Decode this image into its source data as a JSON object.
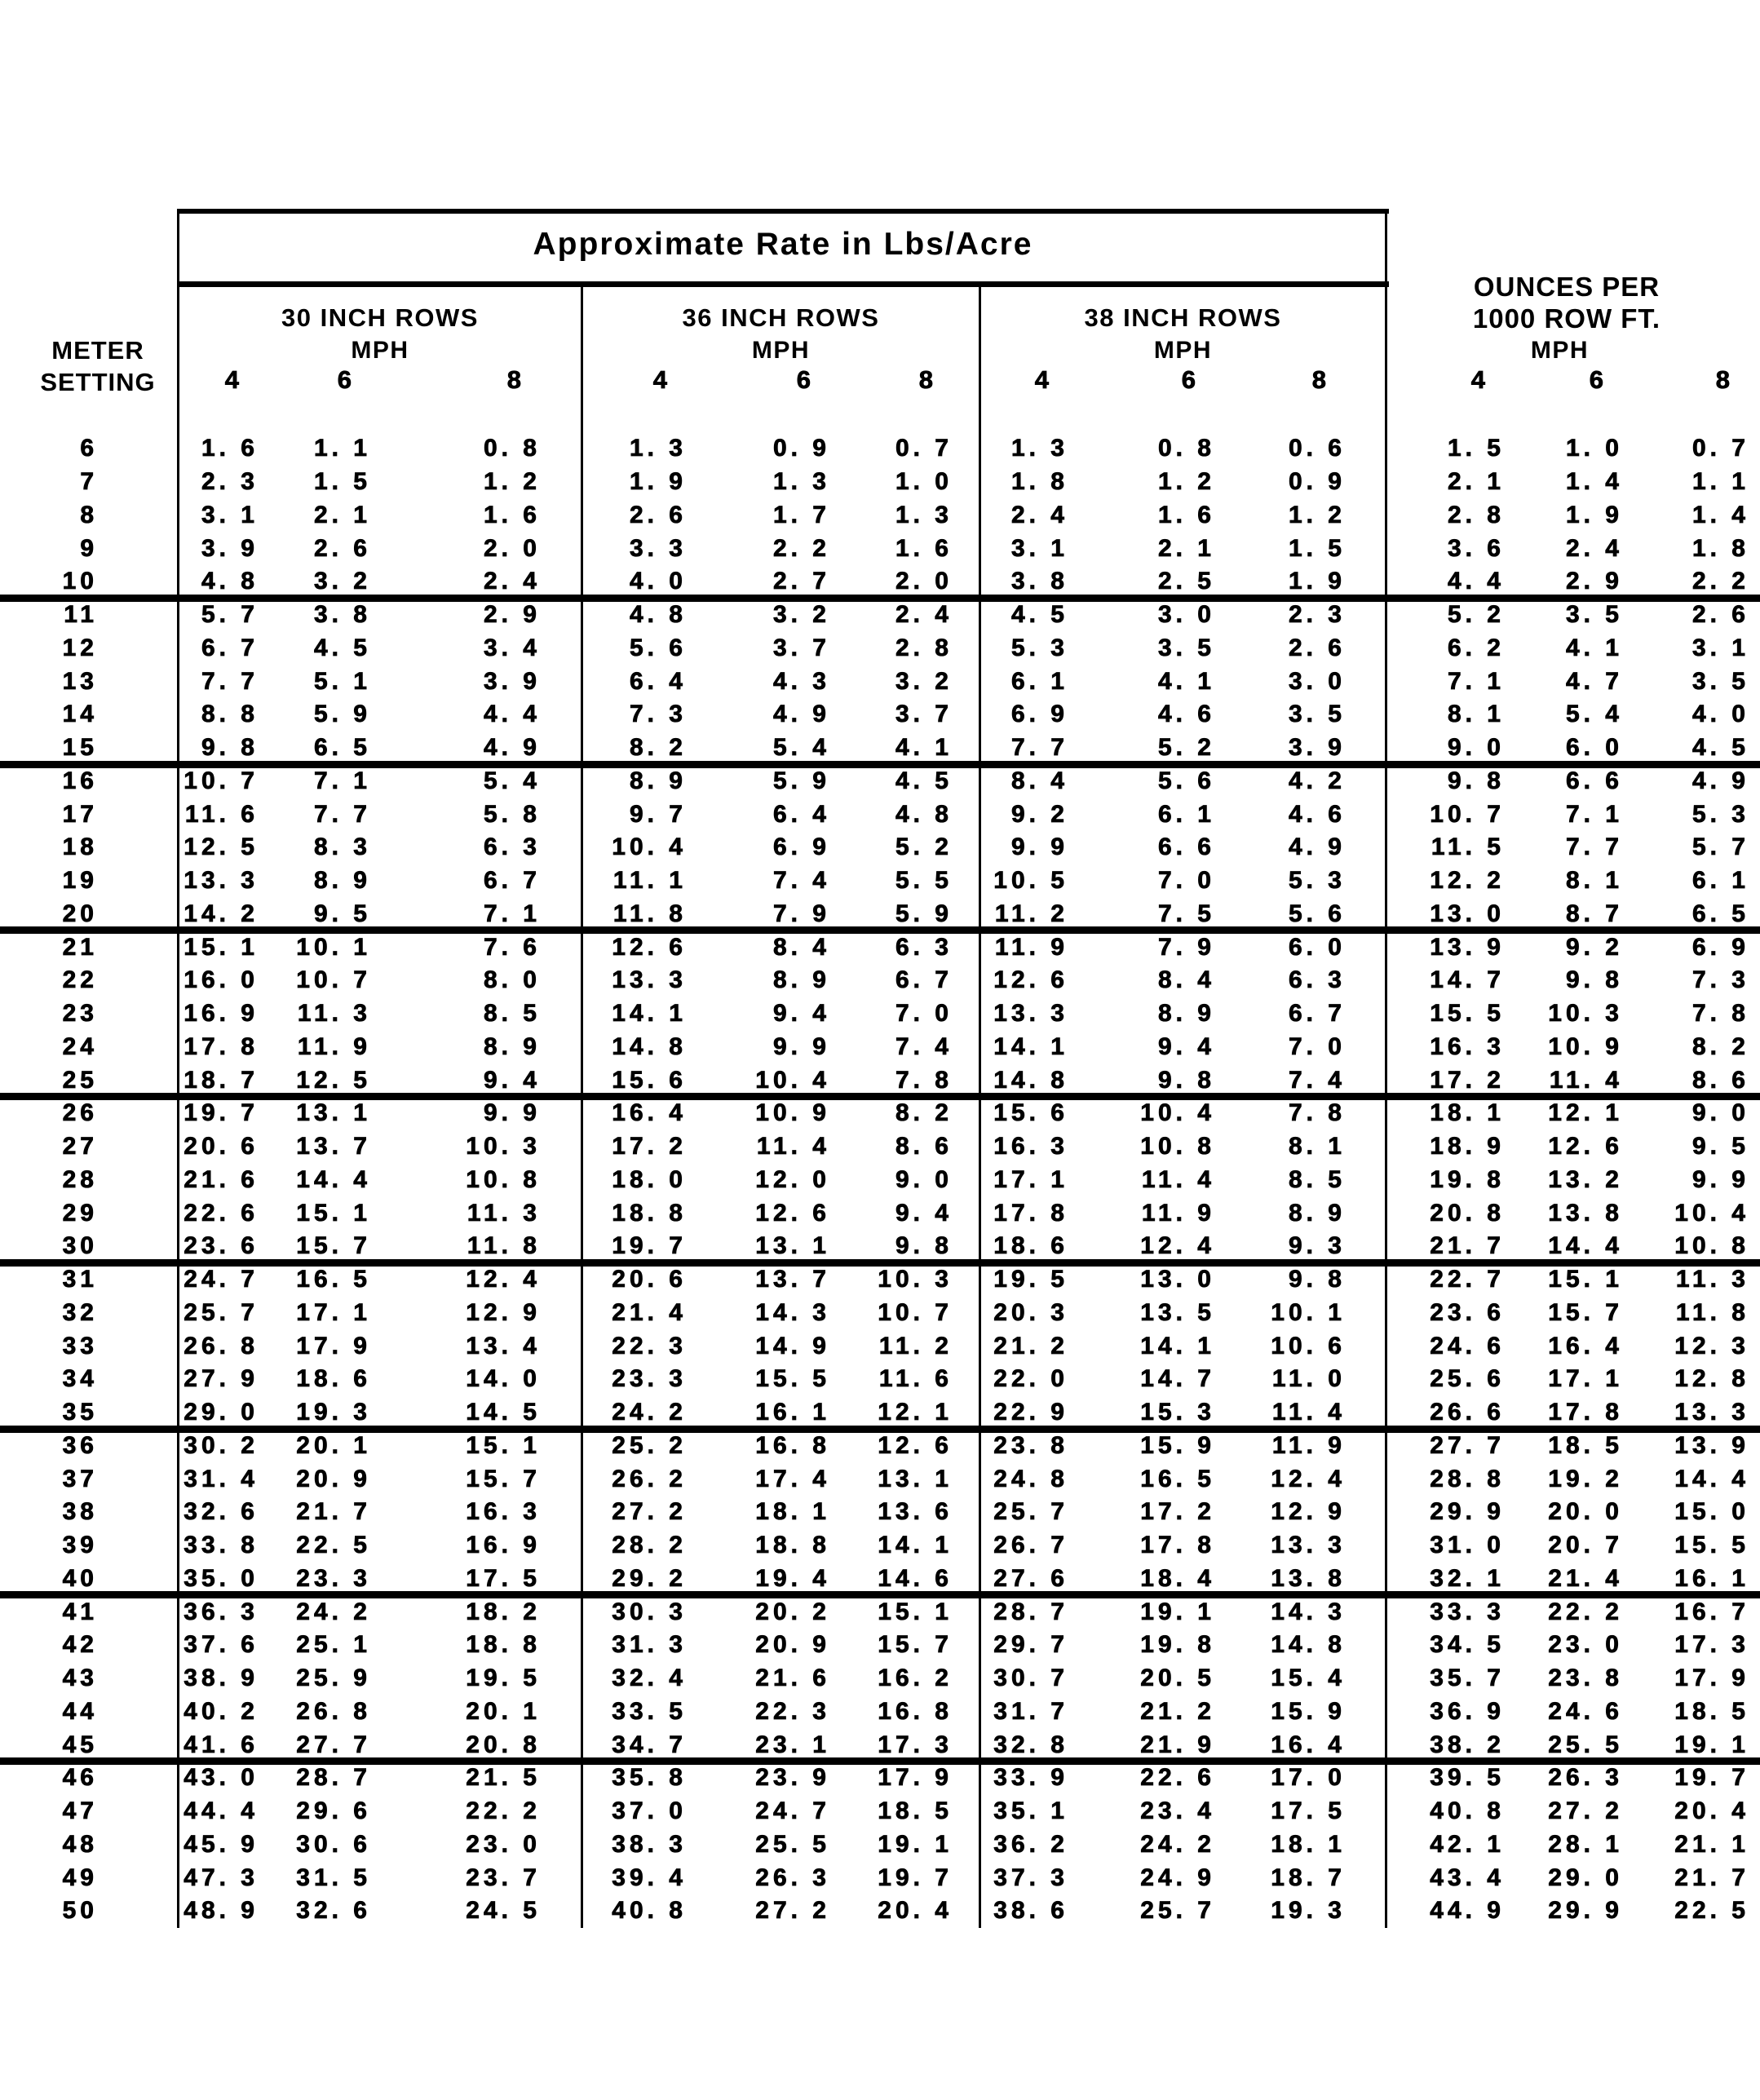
{
  "document": {
    "title": "Approximate Rate in Lbs/Acre",
    "meter_label_line1": "METER",
    "meter_label_line2": "SETTING"
  },
  "columns": {
    "groups": [
      {
        "title": "30 INCH ROWS",
        "unit": "MPH",
        "speeds": [
          "4",
          "6",
          "8"
        ]
      },
      {
        "title": "36 INCH ROWS",
        "unit": "MPH",
        "speeds": [
          "4",
          "6",
          "8"
        ]
      },
      {
        "title": "38 INCH ROWS",
        "unit": "MPH",
        "speeds": [
          "4",
          "6",
          "8"
        ]
      },
      {
        "title_line1": "OUNCES PER",
        "title_line2": "1000 ROW FT.",
        "unit": "MPH",
        "speeds": [
          "4",
          "6",
          "8"
        ]
      }
    ]
  },
  "separator_after_settings": [
    10,
    15,
    20,
    25,
    30,
    35,
    40,
    45
  ],
  "colors": {
    "ink": "#000000",
    "paper": "#ffffff"
  },
  "chart_data": {
    "type": "table",
    "title": "Approximate Rate in Lbs/Acre",
    "column_groups": [
      "30 INCH ROWS MPH",
      "36 INCH ROWS MPH",
      "38 INCH ROWS MPH",
      "OUNCES PER 1000 ROW FT. MPH"
    ],
    "sub_columns": [
      "4",
      "6",
      "8"
    ],
    "row_header": "METER SETTING"
  },
  "rows": [
    {
      "setting": "6",
      "values": [
        "1.6",
        "1.1",
        "0.8",
        "1.3",
        "0.9",
        "0.7",
        "1.3",
        "0.8",
        "0.6",
        "1.5",
        "1.0",
        "0.7"
      ]
    },
    {
      "setting": "7",
      "values": [
        "2.3",
        "1.5",
        "1.2",
        "1.9",
        "1.3",
        "1.0",
        "1.8",
        "1.2",
        "0.9",
        "2.1",
        "1.4",
        "1.1"
      ]
    },
    {
      "setting": "8",
      "values": [
        "3.1",
        "2.1",
        "1.6",
        "2.6",
        "1.7",
        "1.3",
        "2.4",
        "1.6",
        "1.2",
        "2.8",
        "1.9",
        "1.4"
      ]
    },
    {
      "setting": "9",
      "values": [
        "3.9",
        "2.6",
        "2.0",
        "3.3",
        "2.2",
        "1.6",
        "3.1",
        "2.1",
        "1.5",
        "3.6",
        "2.4",
        "1.8"
      ]
    },
    {
      "setting": "10",
      "values": [
        "4.8",
        "3.2",
        "2.4",
        "4.0",
        "2.7",
        "2.0",
        "3.8",
        "2.5",
        "1.9",
        "4.4",
        "2.9",
        "2.2"
      ]
    },
    {
      "setting": "11",
      "values": [
        "5.7",
        "3.8",
        "2.9",
        "4.8",
        "3.2",
        "2.4",
        "4.5",
        "3.0",
        "2.3",
        "5.2",
        "3.5",
        "2.6"
      ]
    },
    {
      "setting": "12",
      "values": [
        "6.7",
        "4.5",
        "3.4",
        "5.6",
        "3.7",
        "2.8",
        "5.3",
        "3.5",
        "2.6",
        "6.2",
        "4.1",
        "3.1"
      ]
    },
    {
      "setting": "13",
      "values": [
        "7.7",
        "5.1",
        "3.9",
        "6.4",
        "4.3",
        "3.2",
        "6.1",
        "4.1",
        "3.0",
        "7.1",
        "4.7",
        "3.5"
      ]
    },
    {
      "setting": "14",
      "values": [
        "8.8",
        "5.9",
        "4.4",
        "7.3",
        "4.9",
        "3.7",
        "6.9",
        "4.6",
        "3.5",
        "8.1",
        "5.4",
        "4.0"
      ]
    },
    {
      "setting": "15",
      "values": [
        "9.8",
        "6.5",
        "4.9",
        "8.2",
        "5.4",
        "4.1",
        "7.7",
        "5.2",
        "3.9",
        "9.0",
        "6.0",
        "4.5"
      ]
    },
    {
      "setting": "16",
      "values": [
        "10.7",
        "7.1",
        "5.4",
        "8.9",
        "5.9",
        "4.5",
        "8.4",
        "5.6",
        "4.2",
        "9.8",
        "6.6",
        "4.9"
      ]
    },
    {
      "setting": "17",
      "values": [
        "11.6",
        "7.7",
        "5.8",
        "9.7",
        "6.4",
        "4.8",
        "9.2",
        "6.1",
        "4.6",
        "10.7",
        "7.1",
        "5.3"
      ]
    },
    {
      "setting": "18",
      "values": [
        "12.5",
        "8.3",
        "6.3",
        "10.4",
        "6.9",
        "5.2",
        "9.9",
        "6.6",
        "4.9",
        "11.5",
        "7.7",
        "5.7"
      ]
    },
    {
      "setting": "19",
      "values": [
        "13.3",
        "8.9",
        "6.7",
        "11.1",
        "7.4",
        "5.5",
        "10.5",
        "7.0",
        "5.3",
        "12.2",
        "8.1",
        "6.1"
      ]
    },
    {
      "setting": "20",
      "values": [
        "14.2",
        "9.5",
        "7.1",
        "11.8",
        "7.9",
        "5.9",
        "11.2",
        "7.5",
        "5.6",
        "13.0",
        "8.7",
        "6.5"
      ]
    },
    {
      "setting": "21",
      "values": [
        "15.1",
        "10.1",
        "7.6",
        "12.6",
        "8.4",
        "6.3",
        "11.9",
        "7.9",
        "6.0",
        "13.9",
        "9.2",
        "6.9"
      ]
    },
    {
      "setting": "22",
      "values": [
        "16.0",
        "10.7",
        "8.0",
        "13.3",
        "8.9",
        "6.7",
        "12.6",
        "8.4",
        "6.3",
        "14.7",
        "9.8",
        "7.3"
      ]
    },
    {
      "setting": "23",
      "values": [
        "16.9",
        "11.3",
        "8.5",
        "14.1",
        "9.4",
        "7.0",
        "13.3",
        "8.9",
        "6.7",
        "15.5",
        "10.3",
        "7.8"
      ]
    },
    {
      "setting": "24",
      "values": [
        "17.8",
        "11.9",
        "8.9",
        "14.8",
        "9.9",
        "7.4",
        "14.1",
        "9.4",
        "7.0",
        "16.3",
        "10.9",
        "8.2"
      ]
    },
    {
      "setting": "25",
      "values": [
        "18.7",
        "12.5",
        "9.4",
        "15.6",
        "10.4",
        "7.8",
        "14.8",
        "9.8",
        "7.4",
        "17.2",
        "11.4",
        "8.6"
      ]
    },
    {
      "setting": "26",
      "values": [
        "19.7",
        "13.1",
        "9.9",
        "16.4",
        "10.9",
        "8.2",
        "15.6",
        "10.4",
        "7.8",
        "18.1",
        "12.1",
        "9.0"
      ]
    },
    {
      "setting": "27",
      "values": [
        "20.6",
        "13.7",
        "10.3",
        "17.2",
        "11.4",
        "8.6",
        "16.3",
        "10.8",
        "8.1",
        "18.9",
        "12.6",
        "9.5"
      ]
    },
    {
      "setting": "28",
      "values": [
        "21.6",
        "14.4",
        "10.8",
        "18.0",
        "12.0",
        "9.0",
        "17.1",
        "11.4",
        "8.5",
        "19.8",
        "13.2",
        "9.9"
      ]
    },
    {
      "setting": "29",
      "values": [
        "22.6",
        "15.1",
        "11.3",
        "18.8",
        "12.6",
        "9.4",
        "17.8",
        "11.9",
        "8.9",
        "20.8",
        "13.8",
        "10.4"
      ]
    },
    {
      "setting": "30",
      "values": [
        "23.6",
        "15.7",
        "11.8",
        "19.7",
        "13.1",
        "9.8",
        "18.6",
        "12.4",
        "9.3",
        "21.7",
        "14.4",
        "10.8"
      ]
    },
    {
      "setting": "31",
      "values": [
        "24.7",
        "16.5",
        "12.4",
        "20.6",
        "13.7",
        "10.3",
        "19.5",
        "13.0",
        "9.8",
        "22.7",
        "15.1",
        "11.3"
      ]
    },
    {
      "setting": "32",
      "values": [
        "25.7",
        "17.1",
        "12.9",
        "21.4",
        "14.3",
        "10.7",
        "20.3",
        "13.5",
        "10.1",
        "23.6",
        "15.7",
        "11.8"
      ]
    },
    {
      "setting": "33",
      "values": [
        "26.8",
        "17.9",
        "13.4",
        "22.3",
        "14.9",
        "11.2",
        "21.2",
        "14.1",
        "10.6",
        "24.6",
        "16.4",
        "12.3"
      ]
    },
    {
      "setting": "34",
      "values": [
        "27.9",
        "18.6",
        "14.0",
        "23.3",
        "15.5",
        "11.6",
        "22.0",
        "14.7",
        "11.0",
        "25.6",
        "17.1",
        "12.8"
      ]
    },
    {
      "setting": "35",
      "values": [
        "29.0",
        "19.3",
        "14.5",
        "24.2",
        "16.1",
        "12.1",
        "22.9",
        "15.3",
        "11.4",
        "26.6",
        "17.8",
        "13.3"
      ]
    },
    {
      "setting": "36",
      "values": [
        "30.2",
        "20.1",
        "15.1",
        "25.2",
        "16.8",
        "12.6",
        "23.8",
        "15.9",
        "11.9",
        "27.7",
        "18.5",
        "13.9"
      ]
    },
    {
      "setting": "37",
      "values": [
        "31.4",
        "20.9",
        "15.7",
        "26.2",
        "17.4",
        "13.1",
        "24.8",
        "16.5",
        "12.4",
        "28.8",
        "19.2",
        "14.4"
      ]
    },
    {
      "setting": "38",
      "values": [
        "32.6",
        "21.7",
        "16.3",
        "27.2",
        "18.1",
        "13.6",
        "25.7",
        "17.2",
        "12.9",
        "29.9",
        "20.0",
        "15.0"
      ]
    },
    {
      "setting": "39",
      "values": [
        "33.8",
        "22.5",
        "16.9",
        "28.2",
        "18.8",
        "14.1",
        "26.7",
        "17.8",
        "13.3",
        "31.0",
        "20.7",
        "15.5"
      ]
    },
    {
      "setting": "40",
      "values": [
        "35.0",
        "23.3",
        "17.5",
        "29.2",
        "19.4",
        "14.6",
        "27.6",
        "18.4",
        "13.8",
        "32.1",
        "21.4",
        "16.1"
      ]
    },
    {
      "setting": "41",
      "values": [
        "36.3",
        "24.2",
        "18.2",
        "30.3",
        "20.2",
        "15.1",
        "28.7",
        "19.1",
        "14.3",
        "33.3",
        "22.2",
        "16.7"
      ]
    },
    {
      "setting": "42",
      "values": [
        "37.6",
        "25.1",
        "18.8",
        "31.3",
        "20.9",
        "15.7",
        "29.7",
        "19.8",
        "14.8",
        "34.5",
        "23.0",
        "17.3"
      ]
    },
    {
      "setting": "43",
      "values": [
        "38.9",
        "25.9",
        "19.5",
        "32.4",
        "21.6",
        "16.2",
        "30.7",
        "20.5",
        "15.4",
        "35.7",
        "23.8",
        "17.9"
      ]
    },
    {
      "setting": "44",
      "values": [
        "40.2",
        "26.8",
        "20.1",
        "33.5",
        "22.3",
        "16.8",
        "31.7",
        "21.2",
        "15.9",
        "36.9",
        "24.6",
        "18.5"
      ]
    },
    {
      "setting": "45",
      "values": [
        "41.6",
        "27.7",
        "20.8",
        "34.7",
        "23.1",
        "17.3",
        "32.8",
        "21.9",
        "16.4",
        "38.2",
        "25.5",
        "19.1"
      ]
    },
    {
      "setting": "46",
      "values": [
        "43.0",
        "28.7",
        "21.5",
        "35.8",
        "23.9",
        "17.9",
        "33.9",
        "22.6",
        "17.0",
        "39.5",
        "26.3",
        "19.7"
      ]
    },
    {
      "setting": "47",
      "values": [
        "44.4",
        "29.6",
        "22.2",
        "37.0",
        "24.7",
        "18.5",
        "35.1",
        "23.4",
        "17.5",
        "40.8",
        "27.2",
        "20.4"
      ]
    },
    {
      "setting": "48",
      "values": [
        "45.9",
        "30.6",
        "23.0",
        "38.3",
        "25.5",
        "19.1",
        "36.2",
        "24.2",
        "18.1",
        "42.1",
        "28.1",
        "21.1"
      ]
    },
    {
      "setting": "49",
      "values": [
        "47.3",
        "31.5",
        "23.7",
        "39.4",
        "26.3",
        "19.7",
        "37.3",
        "24.9",
        "18.7",
        "43.4",
        "29.0",
        "21.7"
      ]
    },
    {
      "setting": "50",
      "values": [
        "48.9",
        "32.6",
        "24.5",
        "40.8",
        "27.2",
        "20.4",
        "38.6",
        "25.7",
        "19.3",
        "44.9",
        "29.9",
        "22.5"
      ]
    }
  ]
}
